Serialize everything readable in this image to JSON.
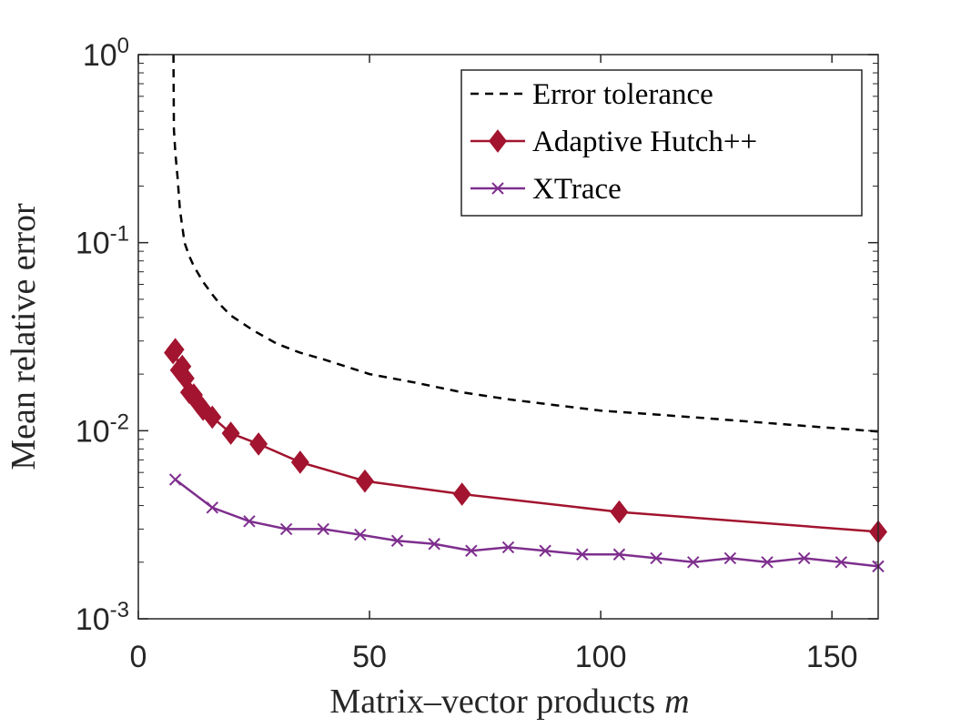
{
  "chart_data": {
    "type": "line",
    "title": "",
    "xlabel": "Matrix–vector products",
    "xlabel_var": "m",
    "ylabel": "Mean relative error",
    "x_scale": "linear",
    "y_scale": "log",
    "xlim": [
      0,
      160
    ],
    "ylim": [
      0.001,
      1
    ],
    "x_ticks": [
      0,
      50,
      100,
      150
    ],
    "x_tick_labels": [
      "0",
      "50",
      "100",
      "150"
    ],
    "y_ticks": [
      {
        "value": 1,
        "base": "10",
        "exp": "0"
      },
      {
        "value": 0.1,
        "base": "10",
        "exp": "-1"
      },
      {
        "value": 0.01,
        "base": "10",
        "exp": "-2"
      },
      {
        "value": 0.001,
        "base": "10",
        "exp": "-3"
      }
    ],
    "legend_position": "top-right",
    "series": [
      {
        "name": "Error tolerance",
        "color": "#000000",
        "style": "dashed",
        "marker": "none",
        "x": [
          7.6,
          7.7,
          8,
          8.5,
          9,
          10,
          11,
          12,
          14,
          16,
          18,
          20,
          25,
          30,
          35,
          40,
          50,
          60,
          70,
          80,
          90,
          100,
          120,
          140,
          160
        ],
        "y": [
          1.0,
          0.4,
          0.3,
          0.22,
          0.15,
          0.1,
          0.085,
          0.075,
          0.062,
          0.053,
          0.046,
          0.041,
          0.034,
          0.029,
          0.026,
          0.024,
          0.02,
          0.018,
          0.016,
          0.0147,
          0.0137,
          0.0128,
          0.0118,
          0.0108,
          0.0099
        ]
      },
      {
        "name": "Adaptive Hutch++",
        "color": "#A2142F",
        "style": "solid",
        "marker": "diamond",
        "x": [
          7.5,
          8,
          8.8,
          9.5,
          10.2,
          11,
          12,
          13,
          14,
          16,
          20,
          26,
          35,
          49,
          70,
          104,
          160
        ],
        "y": [
          0.026,
          0.027,
          0.021,
          0.022,
          0.019,
          0.016,
          0.0155,
          0.014,
          0.013,
          0.0118,
          0.0097,
          0.0085,
          0.0068,
          0.0054,
          0.0046,
          0.0037,
          0.0029
        ]
      },
      {
        "name": "XTrace",
        "color": "#7E2F8E",
        "style": "solid",
        "marker": "x",
        "x": [
          8,
          16,
          24,
          32,
          40,
          48,
          56,
          64,
          72,
          80,
          88,
          96,
          104,
          112,
          120,
          128,
          136,
          144,
          152,
          160
        ],
        "y": [
          0.0055,
          0.0039,
          0.0033,
          0.003,
          0.003,
          0.0028,
          0.0026,
          0.0025,
          0.0023,
          0.0024,
          0.0023,
          0.0022,
          0.0022,
          0.0021,
          0.002,
          0.0021,
          0.002,
          0.0021,
          0.002,
          0.0019
        ]
      }
    ]
  }
}
